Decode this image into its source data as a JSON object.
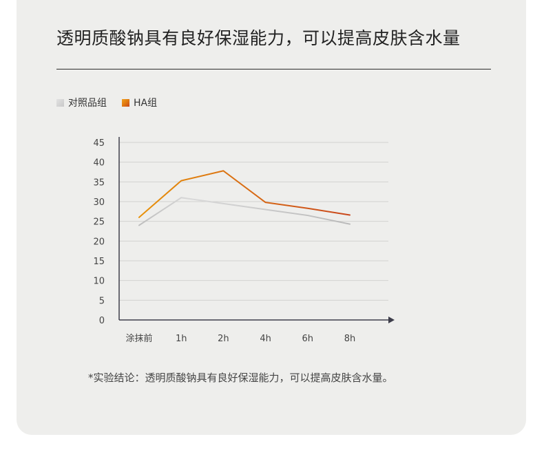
{
  "title": "透明质酸钠具有良好保湿能力，可以提高皮肤含水量",
  "legend": {
    "items": [
      {
        "label": "对照品组",
        "color": "#c8c8c8"
      },
      {
        "label": "HA组",
        "color": "#e07a10"
      }
    ]
  },
  "note": "*实验结论：透明质酸钠具有良好保湿能力，可以提高皮肤含水量。",
  "colors": {
    "control_line": "#c4c4c4",
    "ha_line_start": "#e8920a",
    "ha_line_end": "#c9471c",
    "axis": "#3d3d4a",
    "grid": "#d2d2d0"
  },
  "chart_data": {
    "type": "line",
    "categories": [
      "涂抹前",
      "1h",
      "2h",
      "4h",
      "6h",
      "8h"
    ],
    "series": [
      {
        "name": "对照品组",
        "values": [
          24,
          31,
          29.5,
          28,
          26.5,
          24.3
        ]
      },
      {
        "name": "HA组",
        "values": [
          26,
          35.3,
          37.8,
          29.8,
          28.3,
          26.6
        ]
      }
    ],
    "ylim": [
      0,
      45
    ],
    "yticks": [
      0,
      5,
      10,
      15,
      20,
      25,
      30,
      35,
      40,
      45
    ],
    "grid": true,
    "legend_position": "top-left"
  }
}
